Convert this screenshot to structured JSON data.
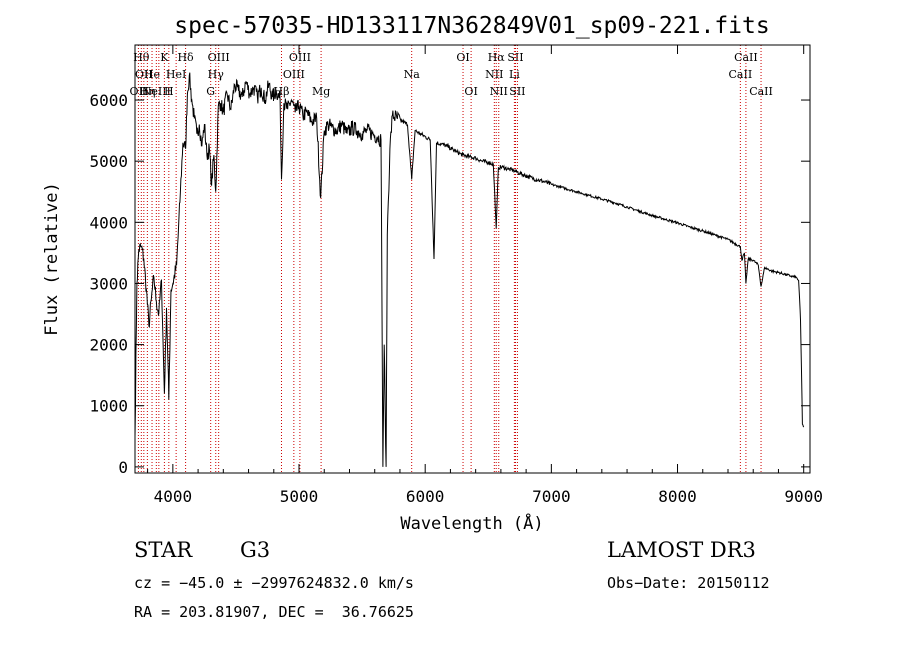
{
  "chart_data": {
    "type": "line",
    "title": "spec-57035-HD133117N362849V01_sp09-221.fits",
    "xlabel": "Wavelength (Å)",
    "ylabel": "Flux (relative)",
    "xlim": [
      3700,
      9050
    ],
    "ylim": [
      -100,
      6900
    ],
    "x_ticks": [
      4000,
      5000,
      6000,
      7000,
      8000,
      9000
    ],
    "y_ticks": [
      0,
      1000,
      2000,
      3000,
      4000,
      5000,
      6000
    ],
    "grid": false,
    "line_color": "#000000",
    "marker_color": "#cc0000",
    "spectrum": [
      [
        3700,
        500
      ],
      [
        3715,
        3000
      ],
      [
        3730,
        3550
      ],
      [
        3750,
        3600
      ],
      [
        3770,
        3400
      ],
      [
        3790,
        2900
      ],
      [
        3810,
        2300
      ],
      [
        3830,
        2750
      ],
      [
        3850,
        3100
      ],
      [
        3870,
        2700
      ],
      [
        3889,
        2500
      ],
      [
        3910,
        3050
      ],
      [
        3933,
        1200
      ],
      [
        3950,
        2600
      ],
      [
        3968,
        1100
      ],
      [
        3985,
        2900
      ],
      [
        4000,
        3000
      ],
      [
        4030,
        3300
      ],
      [
        4060,
        4500
      ],
      [
        4080,
        5300
      ],
      [
        4101,
        5200
      ],
      [
        4115,
        6100
      ],
      [
        4130,
        6400
      ],
      [
        4150,
        6000
      ],
      [
        4170,
        5700
      ],
      [
        4190,
        5450
      ],
      [
        4210,
        5600
      ],
      [
        4230,
        5250
      ],
      [
        4250,
        5600
      ],
      [
        4270,
        5100
      ],
      [
        4290,
        5200
      ],
      [
        4307,
        4600
      ],
      [
        4325,
        5100
      ],
      [
        4340,
        4500
      ],
      [
        4360,
        5900
      ],
      [
        4380,
        5950
      ],
      [
        4400,
        5800
      ],
      [
        4430,
        6100
      ],
      [
        4460,
        5850
      ],
      [
        4490,
        6250
      ],
      [
        4520,
        6150
      ],
      [
        4550,
        6050
      ],
      [
        4580,
        6300
      ],
      [
        4610,
        6100
      ],
      [
        4640,
        6200
      ],
      [
        4670,
        6050
      ],
      [
        4700,
        6200
      ],
      [
        4730,
        6000
      ],
      [
        4760,
        6250
      ],
      [
        4790,
        6050
      ],
      [
        4820,
        6150
      ],
      [
        4850,
        6000
      ],
      [
        4861,
        4700
      ],
      [
        4880,
        5950
      ],
      [
        4910,
        5850
      ],
      [
        4940,
        6000
      ],
      [
        4970,
        5800
      ],
      [
        5000,
        5900
      ],
      [
        5030,
        5750
      ],
      [
        5060,
        5800
      ],
      [
        5100,
        5650
      ],
      [
        5140,
        5700
      ],
      [
        5172,
        4400
      ],
      [
        5200,
        5500
      ],
      [
        5230,
        5600
      ],
      [
        5260,
        5550
      ],
      [
        5300,
        5500
      ],
      [
        5340,
        5600
      ],
      [
        5380,
        5450
      ],
      [
        5420,
        5550
      ],
      [
        5460,
        5500
      ],
      [
        5500,
        5450
      ],
      [
        5540,
        5500
      ],
      [
        5580,
        5450
      ],
      [
        5620,
        5400
      ],
      [
        5650,
        5350
      ],
      [
        5665,
        0
      ],
      [
        5675,
        2000
      ],
      [
        5690,
        0
      ],
      [
        5700,
        3800
      ],
      [
        5720,
        5200
      ],
      [
        5740,
        5750
      ],
      [
        5780,
        5700
      ],
      [
        5820,
        5650
      ],
      [
        5860,
        5600
      ],
      [
        5893,
        4700
      ],
      [
        5920,
        5500
      ],
      [
        5960,
        5450
      ],
      [
        6000,
        5400
      ],
      [
        6040,
        5350
      ],
      [
        6070,
        3400
      ],
      [
        6090,
        5300
      ],
      [
        6130,
        5280
      ],
      [
        6170,
        5250
      ],
      [
        6210,
        5200
      ],
      [
        6250,
        5150
      ],
      [
        6300,
        5100
      ],
      [
        6350,
        5070
      ],
      [
        6400,
        5050
      ],
      [
        6450,
        5000
      ],
      [
        6500,
        4980
      ],
      [
        6540,
        4950
      ],
      [
        6563,
        3900
      ],
      [
        6580,
        4900
      ],
      [
        6620,
        4900
      ],
      [
        6660,
        4870
      ],
      [
        6700,
        4850
      ],
      [
        6750,
        4800
      ],
      [
        6800,
        4760
      ],
      [
        6850,
        4720
      ],
      [
        6900,
        4690
      ],
      [
        6950,
        4660
      ],
      [
        7000,
        4620
      ],
      [
        7100,
        4560
      ],
      [
        7200,
        4500
      ],
      [
        7300,
        4440
      ],
      [
        7400,
        4380
      ],
      [
        7500,
        4320
      ],
      [
        7600,
        4250
      ],
      [
        7700,
        4180
      ],
      [
        7800,
        4110
      ],
      [
        7900,
        4050
      ],
      [
        8000,
        3990
      ],
      [
        8100,
        3920
      ],
      [
        8200,
        3860
      ],
      [
        8300,
        3790
      ],
      [
        8400,
        3720
      ],
      [
        8498,
        3600
      ],
      [
        8510,
        3380
      ],
      [
        8530,
        3500
      ],
      [
        8542,
        3000
      ],
      [
        8560,
        3400
      ],
      [
        8600,
        3380
      ],
      [
        8640,
        3300
      ],
      [
        8662,
        2950
      ],
      [
        8690,
        3260
      ],
      [
        8750,
        3200
      ],
      [
        8800,
        3180
      ],
      [
        8850,
        3150
      ],
      [
        8900,
        3120
      ],
      [
        8940,
        3100
      ],
      [
        8960,
        3050
      ],
      [
        8975,
        2400
      ],
      [
        8990,
        700
      ],
      [
        9000,
        650
      ]
    ],
    "line_markers": [
      {
        "wl": 3727,
        "label": "OII",
        "row": 2
      },
      {
        "wl": 3750,
        "label": "Hθ",
        "row": 0
      },
      {
        "wl": 3770,
        "label": "OII",
        "row": 1
      },
      {
        "wl": 3798,
        "label": "Hη",
        "row": 2
      },
      {
        "wl": 3835,
        "label": "He",
        "row": 1
      },
      {
        "wl": 3869,
        "label": "NeIII",
        "row": 2
      },
      {
        "wl": 3889,
        "label": "",
        "row": 0
      },
      {
        "wl": 3933,
        "label": "K",
        "row": 0
      },
      {
        "wl": 3968,
        "label": "H",
        "row": 2
      },
      {
        "wl": 4026,
        "label": "HeI",
        "row": 1
      },
      {
        "wl": 4101,
        "label": "Hδ",
        "row": 0
      },
      {
        "wl": 4300,
        "label": "G",
        "row": 2
      },
      {
        "wl": 4340,
        "label": "Hγ",
        "row": 1
      },
      {
        "wl": 4363,
        "label": "OIII",
        "row": 0
      },
      {
        "wl": 4861,
        "label": "Hβ",
        "row": 2
      },
      {
        "wl": 4959,
        "label": "OIII",
        "row": 1
      },
      {
        "wl": 5007,
        "label": "OIII",
        "row": 0
      },
      {
        "wl": 5175,
        "label": "Mg",
        "row": 2
      },
      {
        "wl": 5893,
        "label": "Na",
        "row": 1
      },
      {
        "wl": 6300,
        "label": "OI",
        "row": 0
      },
      {
        "wl": 6364,
        "label": "OI",
        "row": 2
      },
      {
        "wl": 6548,
        "label": "NII",
        "row": 1
      },
      {
        "wl": 6563,
        "label": "Hα",
        "row": 0
      },
      {
        "wl": 6583,
        "label": "NII",
        "row": 2
      },
      {
        "wl": 6707,
        "label": "Li",
        "row": 1
      },
      {
        "wl": 6716,
        "label": "SII",
        "row": 0
      },
      {
        "wl": 6731,
        "label": "SII",
        "row": 2
      },
      {
        "wl": 8498,
        "label": "CaII",
        "row": 1
      },
      {
        "wl": 8542,
        "label": "CaII",
        "row": 0
      },
      {
        "wl": 8662,
        "label": "CaII",
        "row": 2
      }
    ]
  },
  "info": {
    "object_type": "STAR",
    "subclass": "G3",
    "survey": "LAMOST DR3",
    "cz": "cz = −45.0 ± −2997624832.0 km/s",
    "obs_date": "Obs−Date: 20150112",
    "radec": "RA = 203.81907, DEC =  36.76625"
  }
}
